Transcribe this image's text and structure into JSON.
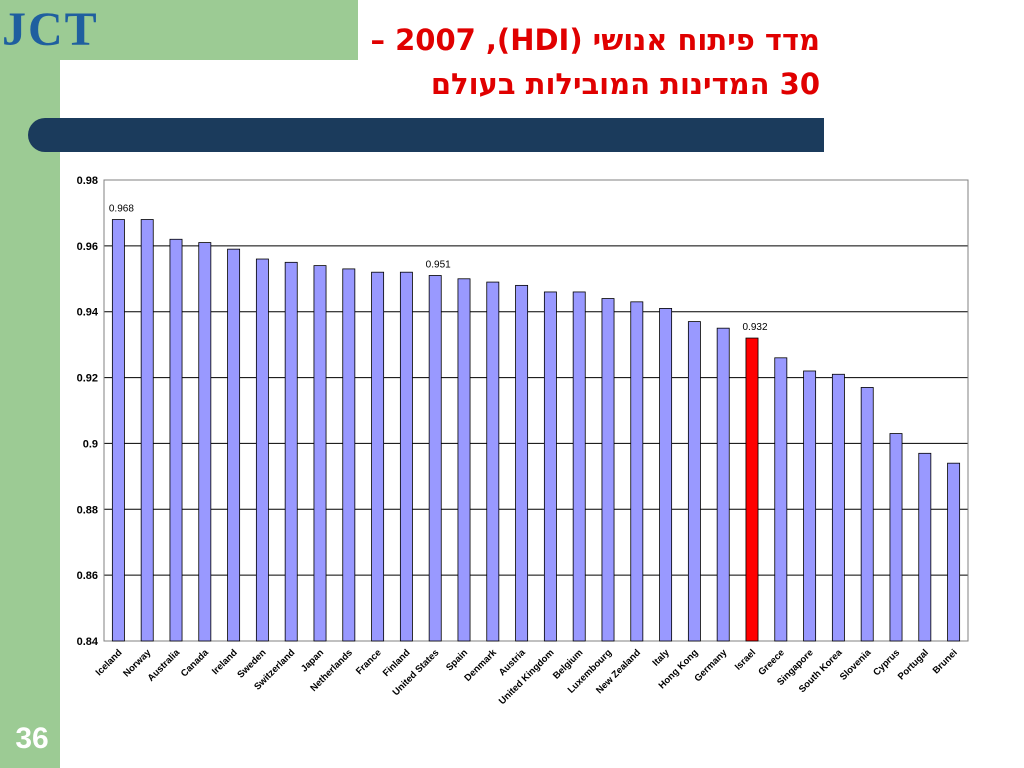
{
  "slide": {
    "logo_text": "JCT",
    "title_line1": "מדד פיתוח אנושי (HDI), 2007 –",
    "title_line2": "30 המדינות המובילות בעולם",
    "slide_number": "36"
  },
  "chart_data": {
    "type": "bar",
    "categories": [
      "Iceland",
      "Norway",
      "Australia",
      "Canada",
      "Ireland",
      "Sweden",
      "Switzerland",
      "Japan",
      "Netherlands",
      "France",
      "Finland",
      "United States",
      "Spain",
      "Denmark",
      "Austria",
      "United Kingdom",
      "Belgium",
      "Luxembourg",
      "New Zealand",
      "Italy",
      "Hong Kong",
      "Germany",
      "Israel",
      "Greece",
      "Singapore",
      "South Korea",
      "Slovenia",
      "Cyprus",
      "Portugal",
      "Brunei"
    ],
    "values": [
      0.968,
      0.968,
      0.962,
      0.961,
      0.959,
      0.956,
      0.955,
      0.954,
      0.953,
      0.952,
      0.952,
      0.951,
      0.95,
      0.949,
      0.948,
      0.946,
      0.946,
      0.944,
      0.943,
      0.941,
      0.937,
      0.935,
      0.932,
      0.926,
      0.922,
      0.921,
      0.917,
      0.903,
      0.897,
      0.894
    ],
    "data_labels": [
      {
        "category": "Iceland",
        "text": "0.968"
      },
      {
        "category": "United States",
        "text": "0.951"
      },
      {
        "category": "Israel",
        "text": "0.932"
      }
    ],
    "highlight": {
      "category": "Israel",
      "color": "#ff0000"
    },
    "bar_color": "#9999ff",
    "y_ticks": [
      "0.98",
      "0.96",
      "0.94",
      "0.92",
      "0.9",
      "0.88",
      "0.86",
      "0.84"
    ],
    "ylim": [
      0.84,
      0.98
    ],
    "grid": true,
    "title": "",
    "xlabel": "",
    "ylabel": ""
  }
}
